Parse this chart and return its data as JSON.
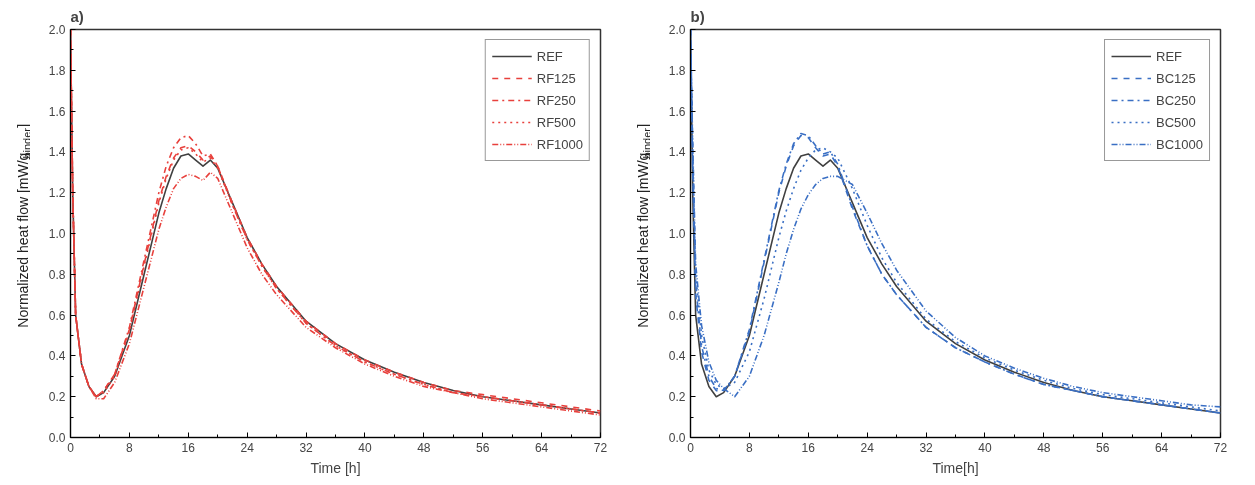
{
  "chart_data": [
    {
      "type": "line",
      "title": "a)",
      "xlabel": "Time [h]",
      "ylabel": "Normalized heat flow [mW/g$_{binder}$]",
      "x": [
        0,
        0.3,
        0.7,
        1.5,
        2.5,
        3.5,
        4.5,
        6,
        8,
        10,
        12,
        13,
        14,
        15,
        16,
        17,
        18,
        19,
        20,
        22,
        24,
        26,
        28,
        32,
        36,
        40,
        44,
        48,
        52,
        56,
        60,
        64,
        68,
        72
      ],
      "xlim": [
        0,
        72
      ],
      "ylim": [
        0,
        2
      ],
      "xticks": [
        0,
        8,
        16,
        24,
        32,
        40,
        48,
        56,
        64,
        72
      ],
      "yticks": [
        {
          "value": 0,
          "label": "0.0"
        },
        0.2,
        0.4,
        0.6,
        0.8,
        {
          "value": 1,
          "label": "1.0"
        },
        1.2,
        1.4,
        1.6,
        1.8,
        {
          "value": 2,
          "label": "2.0"
        }
      ],
      "grid": false,
      "legend": "top right",
      "series": [
        {
          "name": "REF",
          "color": "#404040",
          "line_style": "solid",
          "values": [
            2.0,
            1.2,
            0.6,
            0.36,
            0.25,
            0.2,
            0.22,
            0.3,
            0.5,
            0.8,
            1.1,
            1.22,
            1.32,
            1.38,
            1.39,
            1.36,
            1.33,
            1.36,
            1.32,
            1.15,
            0.98,
            0.85,
            0.74,
            0.57,
            0.46,
            0.38,
            0.32,
            0.27,
            0.23,
            0.2,
            0.18,
            0.16,
            0.14,
            0.12
          ]
        },
        {
          "name": "RF125",
          "color": "#e8403c",
          "line_style": "dashed",
          "values": [
            2.0,
            1.2,
            0.6,
            0.36,
            0.25,
            0.2,
            0.23,
            0.31,
            0.53,
            0.85,
            1.16,
            1.28,
            1.37,
            1.42,
            1.43,
            1.4,
            1.36,
            1.38,
            1.33,
            1.15,
            0.98,
            0.85,
            0.74,
            0.57,
            0.46,
            0.38,
            0.32,
            0.27,
            0.23,
            0.21,
            0.19,
            0.17,
            0.15,
            0.13
          ]
        },
        {
          "name": "RF250",
          "color": "#e8403c",
          "line_style": "dashdot",
          "values": [
            2.0,
            1.2,
            0.6,
            0.36,
            0.25,
            0.2,
            0.23,
            0.31,
            0.54,
            0.87,
            1.2,
            1.33,
            1.42,
            1.47,
            1.48,
            1.44,
            1.38,
            1.39,
            1.33,
            1.14,
            0.97,
            0.84,
            0.73,
            0.56,
            0.45,
            0.37,
            0.31,
            0.26,
            0.22,
            0.2,
            0.18,
            0.16,
            0.14,
            0.12
          ]
        },
        {
          "name": "RF500",
          "color": "#e8403c",
          "line_style": "dotted",
          "values": [
            2.0,
            1.2,
            0.6,
            0.36,
            0.25,
            0.2,
            0.22,
            0.3,
            0.52,
            0.84,
            1.15,
            1.27,
            1.36,
            1.41,
            1.42,
            1.39,
            1.35,
            1.37,
            1.32,
            1.14,
            0.97,
            0.84,
            0.73,
            0.56,
            0.45,
            0.37,
            0.31,
            0.26,
            0.22,
            0.2,
            0.18,
            0.16,
            0.14,
            0.12
          ]
        },
        {
          "name": "RF1000",
          "color": "#e8403c",
          "line_style": "dashdotdot",
          "values": [
            2.0,
            1.2,
            0.6,
            0.36,
            0.25,
            0.19,
            0.19,
            0.27,
            0.46,
            0.74,
            1.02,
            1.13,
            1.22,
            1.27,
            1.29,
            1.28,
            1.26,
            1.3,
            1.27,
            1.1,
            0.93,
            0.8,
            0.7,
            0.54,
            0.44,
            0.36,
            0.3,
            0.25,
            0.22,
            0.19,
            0.17,
            0.15,
            0.13,
            0.11
          ]
        }
      ]
    },
    {
      "type": "line",
      "title": "b)",
      "xlabel": "Time[h]",
      "ylabel": "Normalized heat flow [mW/g$_{binder}$]",
      "x": [
        0,
        0.3,
        0.7,
        1.5,
        2.5,
        3.5,
        4.5,
        6,
        8,
        10,
        12,
        13,
        14,
        15,
        16,
        17,
        18,
        19,
        20,
        22,
        24,
        26,
        28,
        32,
        36,
        40,
        44,
        48,
        52,
        56,
        60,
        64,
        68,
        72
      ],
      "xlim": [
        0,
        72
      ],
      "ylim": [
        0,
        2
      ],
      "xticks": [
        0,
        8,
        16,
        24,
        32,
        40,
        48,
        56,
        64,
        72
      ],
      "yticks": [
        {
          "value": 0,
          "label": "0.0"
        },
        0.2,
        0.4,
        0.6,
        0.8,
        {
          "value": 1,
          "label": "1.0"
        },
        1.2,
        1.4,
        1.6,
        1.8,
        {
          "value": 2,
          "label": "2.0"
        }
      ],
      "grid": false,
      "legend": "top right",
      "series": [
        {
          "name": "REF",
          "color": "#404040",
          "line_style": "solid",
          "values": [
            2.0,
            1.2,
            0.6,
            0.36,
            0.25,
            0.2,
            0.22,
            0.3,
            0.5,
            0.8,
            1.1,
            1.22,
            1.32,
            1.38,
            1.39,
            1.36,
            1.33,
            1.36,
            1.32,
            1.15,
            0.98,
            0.85,
            0.74,
            0.57,
            0.46,
            0.38,
            0.32,
            0.27,
            0.23,
            0.2,
            0.18,
            0.16,
            0.14,
            0.12
          ]
        },
        {
          "name": "BC125",
          "color": "#3a6fc4",
          "line_style": "dashed",
          "values": [
            2.0,
            1.3,
            0.7,
            0.42,
            0.28,
            0.23,
            0.23,
            0.3,
            0.52,
            0.86,
            1.2,
            1.33,
            1.43,
            1.48,
            1.47,
            1.42,
            1.38,
            1.39,
            1.33,
            1.12,
            0.94,
            0.8,
            0.7,
            0.54,
            0.44,
            0.37,
            0.31,
            0.26,
            0.23,
            0.2,
            0.18,
            0.16,
            0.14,
            0.12
          ]
        },
        {
          "name": "BC250",
          "color": "#3a6fc4",
          "line_style": "dashdot",
          "values": [
            2.0,
            1.35,
            0.75,
            0.45,
            0.3,
            0.24,
            0.23,
            0.3,
            0.53,
            0.87,
            1.21,
            1.34,
            1.44,
            1.49,
            1.48,
            1.43,
            1.39,
            1.4,
            1.34,
            1.13,
            0.94,
            0.8,
            0.7,
            0.54,
            0.44,
            0.37,
            0.31,
            0.26,
            0.23,
            0.2,
            0.18,
            0.16,
            0.14,
            0.12
          ]
        },
        {
          "name": "BC500",
          "color": "#3a6fc4",
          "line_style": "dotted",
          "values": [
            2.0,
            1.4,
            0.8,
            0.5,
            0.33,
            0.26,
            0.24,
            0.27,
            0.42,
            0.68,
            0.98,
            1.11,
            1.22,
            1.31,
            1.37,
            1.41,
            1.42,
            1.4,
            1.37,
            1.22,
            1.04,
            0.88,
            0.76,
            0.58,
            0.47,
            0.39,
            0.33,
            0.28,
            0.24,
            0.21,
            0.19,
            0.17,
            0.15,
            0.13
          ]
        },
        {
          "name": "BC1000",
          "color": "#3a6fc4",
          "line_style": "dashdotdot",
          "values": [
            2.0,
            1.45,
            0.85,
            0.55,
            0.37,
            0.28,
            0.24,
            0.2,
            0.3,
            0.5,
            0.76,
            0.9,
            1.02,
            1.12,
            1.19,
            1.24,
            1.27,
            1.28,
            1.28,
            1.24,
            1.1,
            0.95,
            0.82,
            0.62,
            0.49,
            0.4,
            0.34,
            0.29,
            0.25,
            0.22,
            0.2,
            0.18,
            0.16,
            0.15
          ]
        }
      ]
    }
  ]
}
